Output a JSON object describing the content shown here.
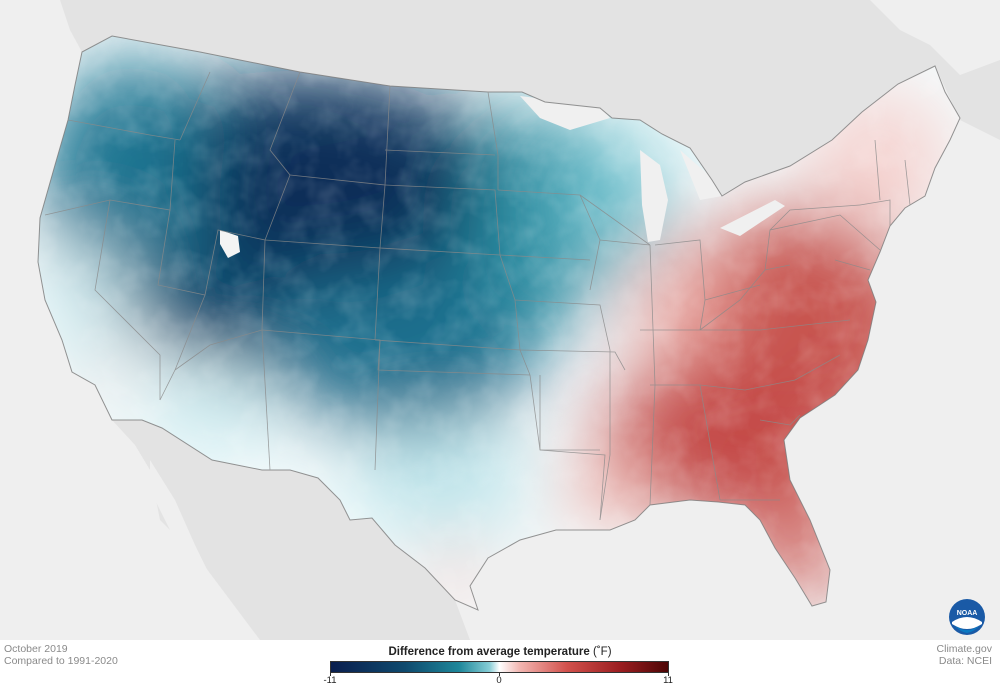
{
  "map": {
    "description_colors": {
      "land_background": "#e3e3e3",
      "ocean_background": "#efefef",
      "state_border": "#8a8a8a"
    },
    "anomaly_regions": [
      {
        "region": "Northern Rockies / Great Plains",
        "anomaly_F": -10
      },
      {
        "region": "Pacific Northwest",
        "anomaly_F": -6
      },
      {
        "region": "California",
        "anomaly_F": -2
      },
      {
        "region": "Southwest",
        "anomaly_F": -3
      },
      {
        "region": "Upper Midwest",
        "anomaly_F": -4
      },
      {
        "region": "Texas",
        "anomaly_F": -1
      },
      {
        "region": "Ohio Valley",
        "anomaly_F": 3
      },
      {
        "region": "Southeast",
        "anomaly_F": 7
      },
      {
        "region": "Mid-Atlantic",
        "anomaly_F": 6
      },
      {
        "region": "Northeast",
        "anomaly_F": 2
      },
      {
        "region": "Florida",
        "anomaly_F": 6
      }
    ]
  },
  "caption": {
    "period": "October 2019",
    "baseline": "Compared to 1991-2020",
    "source_site": "Climate.gov",
    "source_data": "Data: NCEI"
  },
  "legend": {
    "title": "Difference from average temperature",
    "unit": "(˚F)",
    "min_label": "-11",
    "mid_label": "0",
    "max_label": "11",
    "range": [
      -11,
      11
    ],
    "colors": [
      "#0a1e4e",
      "#1e879a",
      "#ffffff",
      "#d2514c",
      "#4d0606"
    ]
  },
  "logo": {
    "text": "NOAA"
  }
}
